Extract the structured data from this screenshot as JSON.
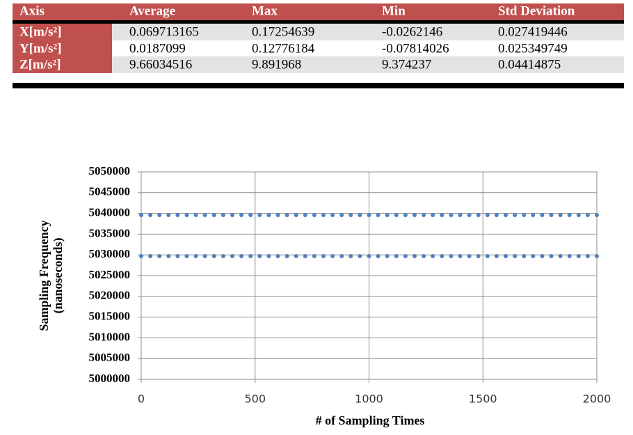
{
  "table": {
    "header": [
      "Axis",
      "Average",
      "Max",
      "Min",
      "Std Deviation"
    ],
    "rows": [
      [
        "X[m/s²]",
        "0.069713165",
        "0.17254639",
        "-0.0262146",
        "0.027419446"
      ],
      [
        "Y[m/s²]",
        "0.0187099",
        "0.12776184",
        "-0.07814026",
        "0.025349749"
      ],
      [
        "Z[m/s²]",
        "9.66034516",
        "9.891968",
        "9.374237",
        "0.04414875"
      ]
    ]
  },
  "chart_data": {
    "type": "scatter",
    "xlabel": "# of Sampling Times",
    "ylabel": [
      "Sampling Frequency",
      "(nanoseconds)"
    ],
    "xlim": [
      0,
      2000
    ],
    "xticks": [
      0,
      500,
      1000,
      1500,
      2000
    ],
    "ylim": [
      5000000,
      5050000
    ],
    "yticks": [
      5000000,
      5005000,
      5010000,
      5015000,
      5020000,
      5025000,
      5030000,
      5035000,
      5040000,
      5045000,
      5050000
    ],
    "grid": true,
    "x": [
      0,
      40,
      80,
      120,
      160,
      200,
      240,
      280,
      320,
      360,
      400,
      440,
      480,
      520,
      560,
      600,
      640,
      680,
      720,
      760,
      800,
      840,
      880,
      920,
      960,
      1000,
      1040,
      1080,
      1120,
      1160,
      1200,
      1240,
      1280,
      1320,
      1360,
      1400,
      1440,
      1480,
      1520,
      1560,
      1600,
      1640,
      1680,
      1720,
      1760,
      1800,
      1840,
      1880,
      1920,
      1960,
      2000
    ],
    "series": [
      {
        "color": "#4f81bd",
        "values": [
          5039600,
          5039600,
          5039600,
          5039600,
          5039600,
          5039600,
          5039600,
          5039600,
          5039600,
          5039600,
          5039600,
          5039600,
          5039600,
          5039600,
          5039600,
          5039600,
          5039600,
          5039600,
          5039600,
          5039600,
          5039600,
          5039600,
          5039600,
          5039600,
          5039600,
          5039600,
          5039600,
          5039600,
          5039600,
          5039600,
          5039600,
          5039600,
          5039600,
          5039600,
          5039600,
          5039600,
          5039600,
          5039600,
          5039600,
          5039600,
          5039600,
          5039600,
          5039600,
          5039600,
          5039600,
          5039600,
          5039600,
          5039600,
          5039600,
          5039600,
          5039600
        ]
      },
      {
        "color": "#4f81bd",
        "values": [
          5029700,
          5029700,
          5029700,
          5029700,
          5029700,
          5029700,
          5029700,
          5029700,
          5029700,
          5029700,
          5029700,
          5029700,
          5029700,
          5029700,
          5029700,
          5029700,
          5029700,
          5029700,
          5029700,
          5029700,
          5029700,
          5029700,
          5029700,
          5029700,
          5029700,
          5029700,
          5029700,
          5029700,
          5029700,
          5029700,
          5029700,
          5029700,
          5029700,
          5029700,
          5029700,
          5029700,
          5029700,
          5029700,
          5029700,
          5029700,
          5029700,
          5029700,
          5029700,
          5029700,
          5029700,
          5029700,
          5029700,
          5029700,
          5029700,
          5029700,
          5029700
        ]
      }
    ]
  }
}
